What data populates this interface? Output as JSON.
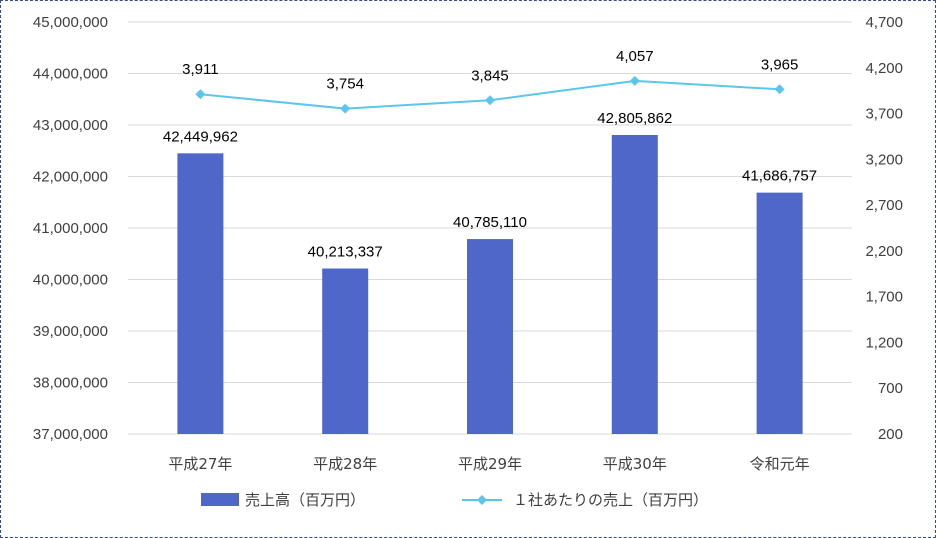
{
  "chart_data": {
    "type": "bar",
    "categories": [
      "平成27年",
      "平成28年",
      "平成29年",
      "平成30年",
      "令和元年"
    ],
    "series": [
      {
        "name": "売上高（百万円）",
        "type": "bar",
        "axis": "left",
        "color": "#4f67c9",
        "values": [
          42449962,
          40213337,
          40785110,
          42805862,
          41686757
        ],
        "labels": [
          "42,449,962",
          "40,213,337",
          "40,785,110",
          "42,805,862",
          "41,686,757"
        ]
      },
      {
        "name": "１社あたりの売上（百万円）",
        "type": "line",
        "axis": "right",
        "color": "#5bc6ec",
        "marker": "diamond",
        "values": [
          3911,
          3754,
          3845,
          4057,
          3965
        ],
        "labels": [
          "3,911",
          "3,754",
          "3,845",
          "4,057",
          "3,965"
        ]
      }
    ],
    "left_axis": {
      "ylim": [
        37000000,
        45000000
      ],
      "ticks": [
        37000000,
        38000000,
        39000000,
        40000000,
        41000000,
        42000000,
        43000000,
        44000000,
        45000000
      ],
      "tick_labels": [
        "37,000,000",
        "38,000,000",
        "39,000,000",
        "40,000,000",
        "41,000,000",
        "42,000,000",
        "43,000,000",
        "44,000,000",
        "45,000,000"
      ]
    },
    "right_axis": {
      "ylim": [
        200,
        4700
      ],
      "ticks": [
        200,
        700,
        1200,
        1700,
        2200,
        2700,
        3200,
        3700,
        4200,
        4700
      ],
      "tick_labels": [
        "200",
        "700",
        "1,200",
        "1,700",
        "2,200",
        "2,700",
        "3,200",
        "3,700",
        "4,200",
        "4,700"
      ]
    },
    "grid": true,
    "legend_position": "bottom"
  }
}
